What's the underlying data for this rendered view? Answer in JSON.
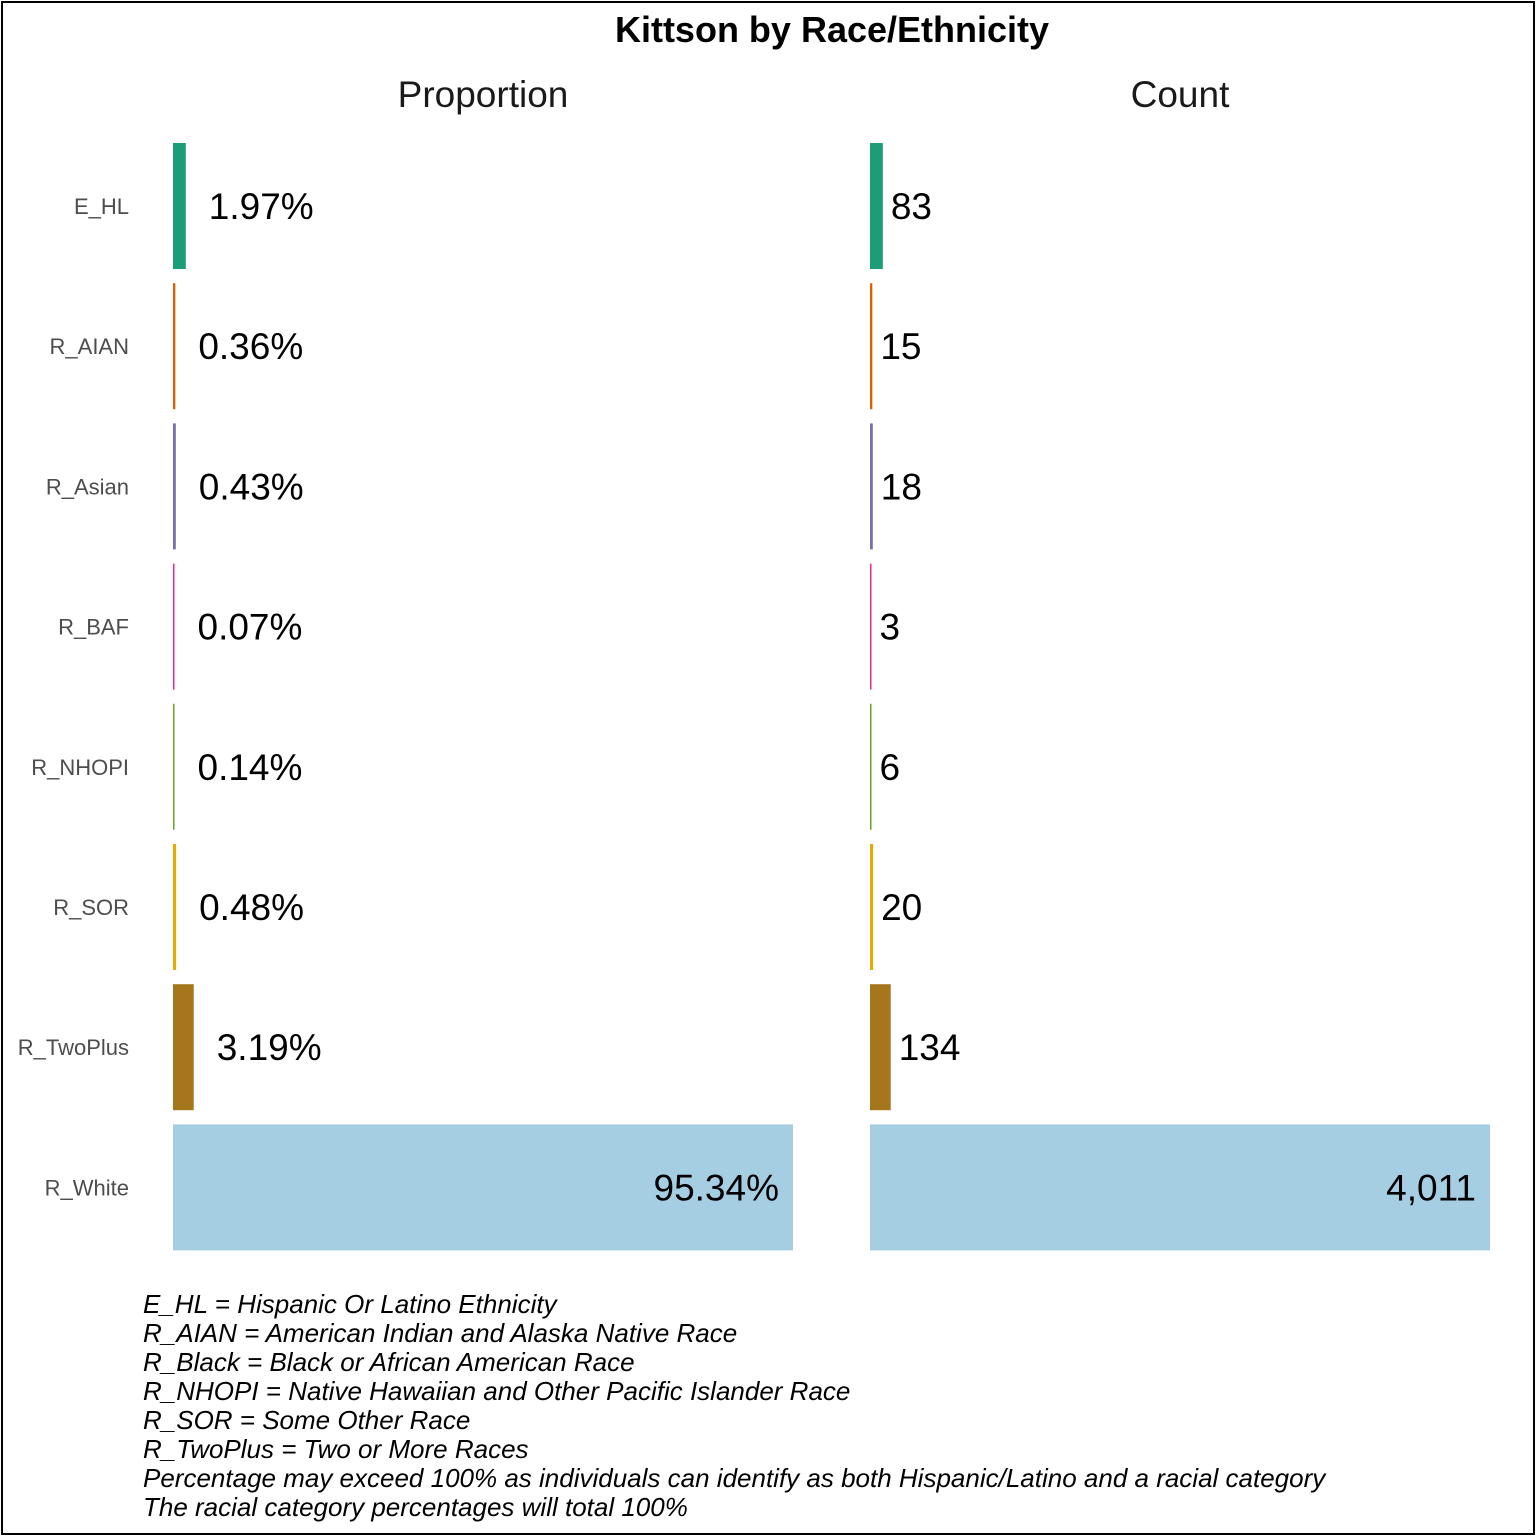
{
  "chart_data": {
    "type": "bar",
    "orientation": "horizontal",
    "title": "Kittson by Race/Ethnicity",
    "categories": [
      "E_HL",
      "R_AIAN",
      "R_Asian",
      "R_BAF",
      "R_NHOPI",
      "R_SOR",
      "R_TwoPlus",
      "R_White"
    ],
    "colors": [
      "#1b9e77",
      "#d95f02",
      "#7570b3",
      "#e7298a",
      "#66a61e",
      "#e6ab02",
      "#a6761d",
      "#a6cee3"
    ],
    "panels": [
      {
        "title": "Proportion",
        "values": [
          1.97,
          0.36,
          0.43,
          0.07,
          0.14,
          0.48,
          3.19,
          95.34
        ],
        "labels": [
          "1.97%",
          "0.36%",
          "0.43%",
          "0.07%",
          "0.14%",
          "0.48%",
          "3.19%",
          "95.34%"
        ]
      },
      {
        "title": "Count",
        "values": [
          83,
          15,
          18,
          3,
          6,
          20,
          134,
          4011
        ],
        "labels": [
          "83",
          "15",
          "18",
          "3",
          "6",
          "20",
          "134",
          "4,011"
        ]
      }
    ],
    "grid": false,
    "legend": "none"
  },
  "caption_lines": [
    "E_HL = Hispanic Or Latino Ethnicity",
    "R_AIAN = American Indian and Alaska Native Race",
    "R_Black = Black or African American Race",
    "R_NHOPI = Native Hawaiian and Other Pacific Islander Race",
    "R_SOR = Some Other Race",
    "R_TwoPlus = Two or More Races",
    "Percentage may exceed 100% as individuals can identify as both Hispanic/Latino and a racial category",
    "The racial category percentages will total 100%"
  ]
}
